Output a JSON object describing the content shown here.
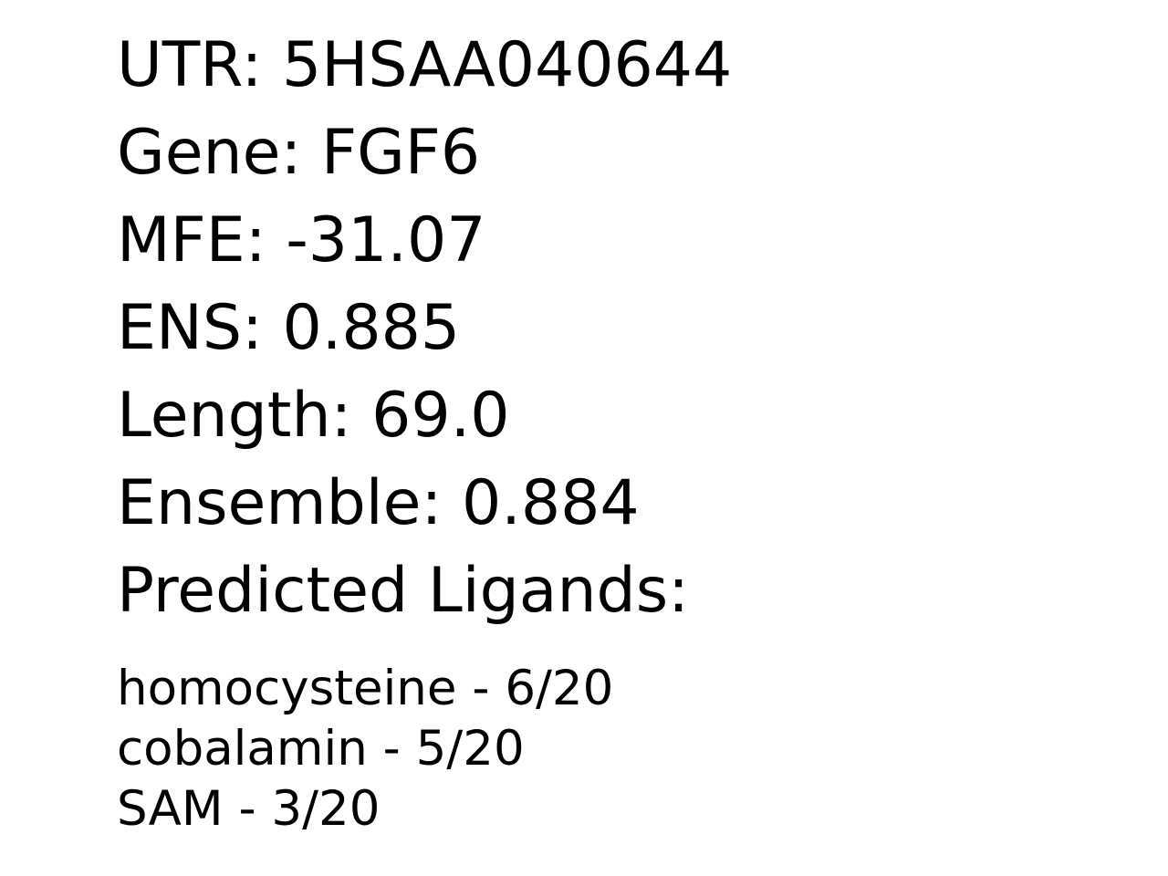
{
  "info": {
    "utr": "UTR: 5HSAA040644",
    "gene": "Gene: FGF6",
    "mfe": "MFE: -31.07",
    "ens": "ENS: 0.885",
    "length": "Length: 69.0",
    "ensemble": "Ensemble: 0.884",
    "ligands_heading": "Predicted Ligands:"
  },
  "ligands": [
    "homocysteine - 6/20",
    "cobalamin - 5/20",
    "SAM - 3/20"
  ]
}
